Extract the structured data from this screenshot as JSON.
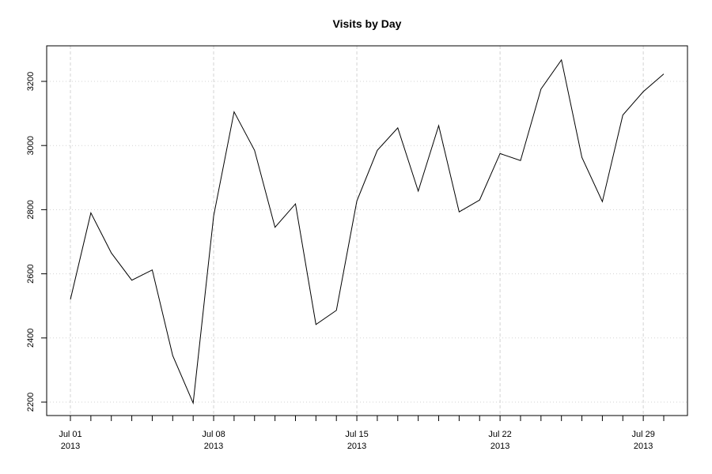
{
  "chart_data": {
    "type": "line",
    "title": "Visits by Day",
    "xlabel": "",
    "ylabel": "",
    "x": [
      "2013-07-01",
      "2013-07-02",
      "2013-07-03",
      "2013-07-04",
      "2013-07-05",
      "2013-07-06",
      "2013-07-07",
      "2013-07-08",
      "2013-07-09",
      "2013-07-10",
      "2013-07-11",
      "2013-07-12",
      "2013-07-13",
      "2013-07-14",
      "2013-07-15",
      "2013-07-16",
      "2013-07-17",
      "2013-07-18",
      "2013-07-19",
      "2013-07-20",
      "2013-07-21",
      "2013-07-22",
      "2013-07-23",
      "2013-07-24",
      "2013-07-25",
      "2013-07-26",
      "2013-07-27",
      "2013-07-28",
      "2013-07-29",
      "2013-07-30"
    ],
    "series": [
      {
        "values": [
          2520,
          2790,
          2665,
          2580,
          2612,
          2345,
          2197,
          2780,
          3105,
          2985,
          2745,
          2818,
          2442,
          2486,
          2827,
          2985,
          3055,
          2858,
          3062,
          2793,
          2830,
          2975,
          2953,
          3176,
          3267,
          2963,
          2825,
          3095,
          3168,
          3223
        ],
        "color": "#000000"
      }
    ],
    "xlim": [
      "2013-07-01",
      "2013-07-30"
    ],
    "ylim": [
      2200,
      3200
    ],
    "x_ticks": [
      {
        "date": "2013-07-01",
        "line1": "Jul 01",
        "line2": "2013"
      },
      {
        "date": "2013-07-08",
        "line1": "Jul 08",
        "line2": "2013"
      },
      {
        "date": "2013-07-15",
        "line1": "Jul 15",
        "line2": "2013"
      },
      {
        "date": "2013-07-22",
        "line1": "Jul 22",
        "line2": "2013"
      },
      {
        "date": "2013-07-29",
        "line1": "Jul 29",
        "line2": "2013"
      }
    ],
    "y_ticks": [
      2200,
      2400,
      2600,
      2800,
      3000,
      3200
    ],
    "grid": true,
    "grid_color": "#d3d3d3",
    "line_color": "#000000"
  }
}
